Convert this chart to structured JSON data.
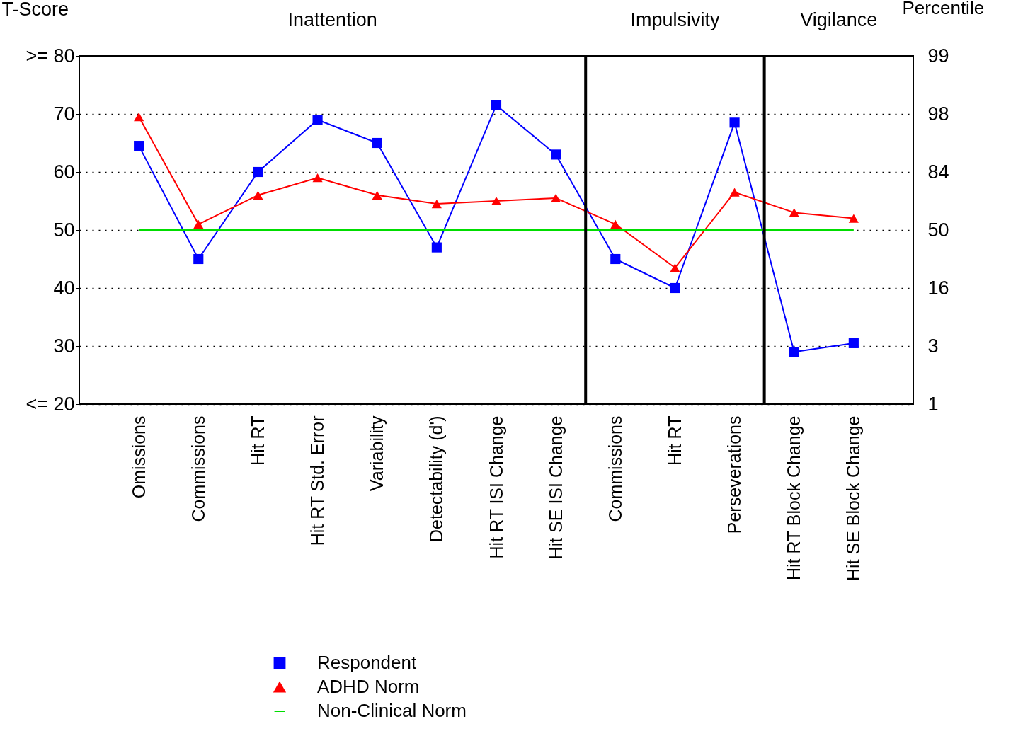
{
  "chart_data": {
    "type": "line",
    "ylabel": "T-Score",
    "y2label": "Percentile",
    "categories": [
      "Omissions",
      "Commissions",
      "Hit RT",
      "Hit RT Std. Error",
      "Variability",
      "Detectability (d')",
      "Hit RT ISI Change",
      "Hit SE ISI Change",
      "Commissions",
      "Hit RT",
      "Perseverations",
      "Hit RT Block Change",
      "Hit SE Block Change"
    ],
    "series": [
      {
        "name": "Respondent",
        "color": "#0000ff",
        "marker": "square",
        "values": [
          64.5,
          45,
          60,
          69,
          65,
          47,
          71.5,
          63,
          45,
          40,
          68.5,
          29,
          30.5
        ]
      },
      {
        "name": "ADHD Norm",
        "color": "#ff0000",
        "marker": "triangle",
        "values": [
          69.5,
          51,
          56,
          59,
          56,
          54.5,
          55,
          55.5,
          51,
          43.5,
          56.5,
          53,
          52
        ]
      },
      {
        "name": "Non-Clinical Norm",
        "color": "#00dd00",
        "marker": "none",
        "values": [
          50,
          50,
          50,
          50,
          50,
          50,
          50,
          50,
          50,
          50,
          50,
          50,
          50
        ]
      }
    ],
    "ylim": [
      20,
      80
    ],
    "yticks": [
      {
        "value": 20,
        "label": "<= 20"
      },
      30,
      40,
      50,
      60,
      70,
      {
        "value": 80,
        "label": ">= 80"
      }
    ],
    "y2_categories": [
      "99",
      "98",
      "84",
      "50",
      "16",
      "3",
      "1"
    ],
    "annotations": [
      "Inattention",
      "Impulsivity",
      "Vigilance"
    ],
    "grid": "y",
    "legend": "bottom"
  }
}
